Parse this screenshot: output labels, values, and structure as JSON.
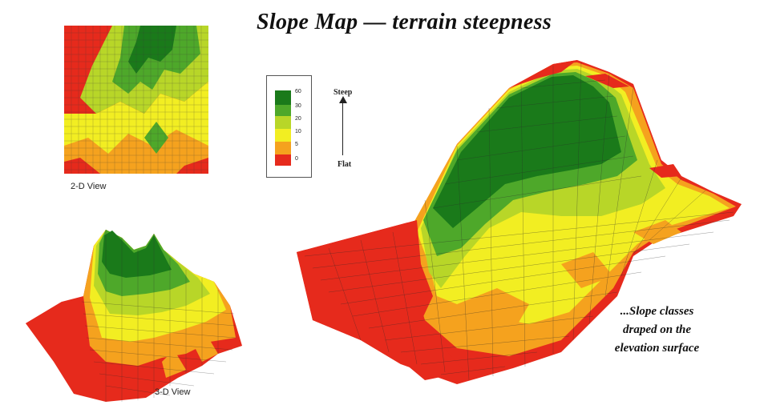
{
  "title": "Slope Map — terrain steepness",
  "view_2d": {
    "label": "2-D View"
  },
  "view_3d": {
    "label": "3-D View"
  },
  "legend": {
    "ticks": [
      "60",
      "30",
      "20",
      "10",
      "5",
      "0"
    ],
    "colors": [
      "#1a7a1a",
      "#4ea82a",
      "#b8d628",
      "#f2ee22",
      "#f5a21e",
      "#e62a1c"
    ],
    "top_label": "Steep",
    "bottom_label": "Flat"
  },
  "caption": [
    "...Slope classes",
    "draped on the",
    "elevation surface"
  ],
  "colors": {
    "red": "#e62a1c",
    "orange": "#f5a21e",
    "yellow": "#f2ee22",
    "lightgreen": "#b8d628",
    "green": "#4ea82a",
    "darkgreen": "#1a7a1a"
  }
}
